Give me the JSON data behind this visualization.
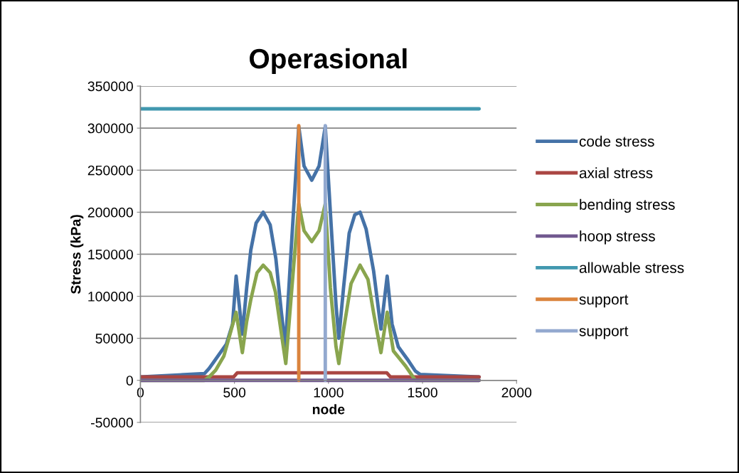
{
  "chart_data": {
    "type": "line",
    "title": "Operasional",
    "xlabel": "node",
    "ylabel": "Stress (kPa)",
    "xlim": [
      0,
      2000
    ],
    "xticks": [
      0,
      500,
      1000,
      1500,
      2000
    ],
    "ylim": [
      -50000,
      350000
    ],
    "yticks": [
      -50000,
      0,
      50000,
      100000,
      150000,
      200000,
      250000,
      300000,
      350000
    ],
    "grid": "y",
    "legend": "right",
    "marker": "none",
    "line_style": "solid",
    "series": [
      {
        "name": "code stress",
        "color": "#4572a7",
        "x": [
          0,
          340,
          365,
          400,
          457,
          490,
          509,
          542,
          565,
          587,
          615,
          653,
          690,
          720,
          750,
          771,
          800,
          842,
          870,
          911,
          950,
          983,
          1010,
          1040,
          1055,
          1080,
          1110,
          1140,
          1168,
          1200,
          1240,
          1279,
          1312,
          1338,
          1371,
          1420,
          1462,
          1488,
          1801
        ],
        "values": [
          4000,
          8000,
          14000,
          25000,
          43000,
          67000,
          124000,
          55000,
          110000,
          155000,
          187000,
          200000,
          185000,
          145000,
          80000,
          40000,
          150000,
          302000,
          255000,
          238000,
          255000,
          302000,
          200000,
          90000,
          50000,
          110000,
          175000,
          197000,
          200000,
          180000,
          130000,
          61000,
          124000,
          67000,
          40000,
          25000,
          11000,
          7000,
          4000
        ]
      },
      {
        "name": "axial stress",
        "color": "#aa4643",
        "x": [
          0,
          495,
          515,
          1310,
          1330,
          1801
        ],
        "values": [
          4000,
          4000,
          9000,
          9000,
          4000,
          4000
        ]
      },
      {
        "name": "bending stress",
        "color": "#89a54e",
        "x": [
          0,
          340,
          365,
          400,
          444,
          509,
          542,
          565,
          587,
          620,
          653,
          690,
          718,
          750,
          773,
          800,
          842,
          870,
          911,
          950,
          983,
          1010,
          1040,
          1055,
          1080,
          1120,
          1168,
          1210,
          1240,
          1279,
          1312,
          1345,
          1410,
          1462,
          1801
        ],
        "values": [
          0,
          0,
          4000,
          12000,
          29000,
          81000,
          33000,
          70000,
          96000,
          128000,
          137000,
          128000,
          105000,
          55000,
          20000,
          95000,
          210000,
          178000,
          165000,
          178000,
          210000,
          110000,
          40000,
          20000,
          60000,
          115000,
          137000,
          120000,
          80000,
          33000,
          81000,
          35000,
          17000,
          0,
          0
        ]
      },
      {
        "name": "hoop stress",
        "color": "#71588f",
        "x": [
          0,
          1801
        ],
        "values": [
          0,
          0
        ]
      },
      {
        "name": "allowable stress",
        "color": "#4198af",
        "x": [
          0,
          1801
        ],
        "values": [
          323000,
          323000
        ]
      },
      {
        "name": "support",
        "color": "#db843d",
        "x": [
          842,
          842
        ],
        "values": [
          0,
          303000
        ]
      },
      {
        "name": "support",
        "color": "#93a9cf",
        "x": [
          983,
          983
        ],
        "values": [
          0,
          303000
        ]
      }
    ]
  }
}
